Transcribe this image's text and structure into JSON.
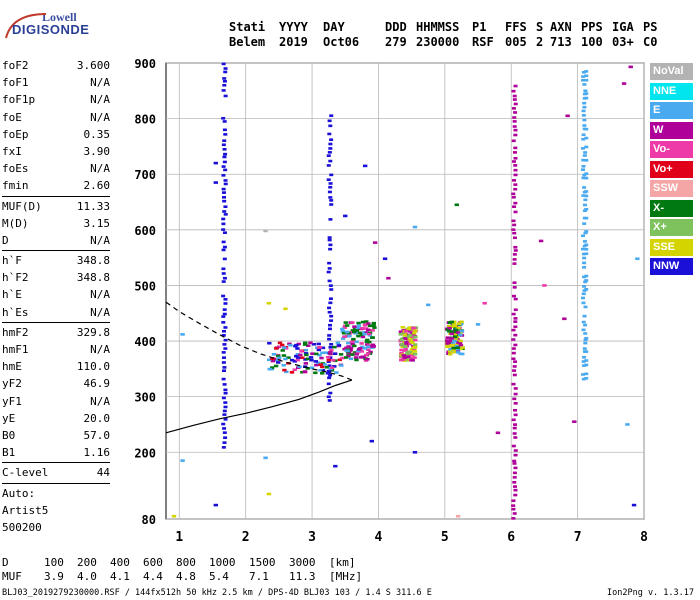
{
  "logo": {
    "line1": "Lowell",
    "line2": "DIGISONDE"
  },
  "header": {
    "labels": [
      "Stati",
      "YYYY",
      "DAY",
      "DDD",
      "HHMMSS",
      "P1",
      "FFS",
      "S",
      "AXN",
      "PPS",
      "IGA",
      "PS"
    ],
    "values": [
      "Belem",
      "2019",
      "Oct06",
      "279",
      "230000",
      "RSF",
      "005",
      "2",
      "713",
      "100",
      "03+",
      "C0"
    ]
  },
  "params": [
    {
      "name": "foF2",
      "value": "3.600"
    },
    {
      "name": "foF1",
      "value": "N/A"
    },
    {
      "name": "foF1p",
      "value": "N/A"
    },
    {
      "name": "foE",
      "value": "N/A"
    },
    {
      "name": "foEp",
      "value": "0.35"
    },
    {
      "name": "fxI",
      "value": "3.90"
    },
    {
      "name": "foEs",
      "value": "N/A"
    },
    {
      "name": "fmin",
      "value": "2.60",
      "sep_after": true
    },
    {
      "name": "MUF(D)",
      "value": "11.33"
    },
    {
      "name": "M(D)",
      "value": "3.15"
    },
    {
      "name": "D",
      "value": "N/A",
      "sep_after": true
    },
    {
      "name": "h`F",
      "value": "348.8"
    },
    {
      "name": "h`F2",
      "value": "348.8"
    },
    {
      "name": "h`E",
      "value": "N/A"
    },
    {
      "name": "h`Es",
      "value": "N/A",
      "sep_after": true
    },
    {
      "name": "hmF2",
      "value": "329.8"
    },
    {
      "name": "hmF1",
      "value": "N/A"
    },
    {
      "name": "hmE",
      "value": "110.0"
    },
    {
      "name": "yF2",
      "value": "46.9"
    },
    {
      "name": "yF1",
      "value": "N/A"
    },
    {
      "name": "yE",
      "value": "20.0"
    },
    {
      "name": "B0",
      "value": "57.0"
    },
    {
      "name": "B1",
      "value": "1.16",
      "sep_after": true
    },
    {
      "name": "C-level",
      "value": "44",
      "sep_after": true
    },
    {
      "name": "Auto:",
      "value": ""
    },
    {
      "name": "Artist5",
      "value": ""
    },
    {
      "name": "500200",
      "value": ""
    }
  ],
  "legend": [
    {
      "label": "NoVal",
      "color": "#b3b3b3"
    },
    {
      "label": "NNE",
      "color": "#00e5ee"
    },
    {
      "label": "E",
      "color": "#4aaaf0"
    },
    {
      "label": "W",
      "color": "#b0009a"
    },
    {
      "label": "Vo-",
      "color": "#ee3aa8"
    },
    {
      "label": "Vo+",
      "color": "#e0001a"
    },
    {
      "label": "SSW",
      "color": "#f4a6a6"
    },
    {
      "label": "X-",
      "color": "#007a10"
    },
    {
      "label": "X+",
      "color": "#7ec25e"
    },
    {
      "label": "SSE",
      "color": "#d4d400"
    },
    {
      "label": "NNW",
      "color": "#1a10d8"
    }
  ],
  "dmuf": {
    "d_label": "D",
    "d_values": [
      "100",
      "200",
      "400",
      "600",
      "800",
      "1000",
      "1500",
      "3000"
    ],
    "d_unit": "[km]",
    "muf_label": "MUF",
    "muf_values": [
      "3.9",
      "4.0",
      "4.1",
      "4.4",
      "4.8",
      "5.4",
      "7.1",
      "11.3"
    ],
    "muf_unit": "[MHz]"
  },
  "footer": {
    "left": "BLJ03_2019279230000.RSF / 144fx512h 50 kHz 2.5 km / DPS-4D BLJ03 103 / 1.4 S 311.6 E",
    "right": "Ion2Png v. 1.3.17"
  },
  "chart_data": {
    "type": "scatter",
    "xlim": [
      0.8,
      8.0
    ],
    "ylim": [
      80,
      900
    ],
    "x_ticks": [
      1,
      2,
      3,
      4,
      5,
      6,
      7,
      8
    ],
    "y_ticks": [
      80,
      200,
      300,
      400,
      500,
      600,
      700,
      800,
      900
    ],
    "grid": true,
    "legend_position": "right",
    "profile": [
      {
        "x": 0.8,
        "y": 235
      },
      {
        "x": 1.2,
        "y": 248
      },
      {
        "x": 1.6,
        "y": 260
      },
      {
        "x": 2.0,
        "y": 270
      },
      {
        "x": 2.4,
        "y": 282
      },
      {
        "x": 2.8,
        "y": 295
      },
      {
        "x": 3.1,
        "y": 308
      },
      {
        "x": 3.35,
        "y": 320
      },
      {
        "x": 3.6,
        "y": 330
      }
    ],
    "trace": [
      {
        "x": 3.6,
        "y": 330
      },
      {
        "x": 3.45,
        "y": 337
      },
      {
        "x": 3.2,
        "y": 345
      },
      {
        "x": 3.0,
        "y": 350
      },
      {
        "x": 2.8,
        "y": 356
      },
      {
        "x": 2.6,
        "y": 362
      },
      {
        "x": 2.4,
        "y": 370
      },
      {
        "x": 2.2,
        "y": 378
      },
      {
        "x": 1.9,
        "y": 393
      },
      {
        "x": 1.6,
        "y": 412
      },
      {
        "x": 1.3,
        "y": 432
      },
      {
        "x": 1.0,
        "y": 453
      },
      {
        "x": 0.8,
        "y": 470
      }
    ],
    "echo_columns": [
      {
        "x": 1.68,
        "y0": 200,
        "y1": 900,
        "mode": "NNW"
      },
      {
        "x": 6.05,
        "y0": 80,
        "y1": 860,
        "mode": "W"
      },
      {
        "x": 7.1,
        "y0": 330,
        "y1": 890,
        "mode": "E"
      },
      {
        "x": 3.27,
        "y0": 290,
        "y1": 805,
        "mode": "NNW"
      }
    ],
    "echo_clusters": [
      {
        "x": 2.9,
        "y": 370,
        "spread_x": 0.55,
        "spread_y": 28,
        "modes": [
          "W",
          "Vo-",
          "Vo+",
          "X-",
          "NNW",
          "E"
        ]
      },
      {
        "x": 3.7,
        "y": 400,
        "spread_x": 0.25,
        "spread_y": 35,
        "modes": [
          "W",
          "Vo-",
          "E",
          "X-"
        ]
      },
      {
        "x": 4.45,
        "y": 395,
        "spread_x": 0.12,
        "spread_y": 30,
        "modes": [
          "W",
          "Vo-",
          "SSE",
          "X+"
        ]
      },
      {
        "x": 5.15,
        "y": 405,
        "spread_x": 0.12,
        "spread_y": 30,
        "modes": [
          "W",
          "X-",
          "SSE",
          "E"
        ]
      }
    ],
    "scatter_points": [
      {
        "x": 1.55,
        "y": 720,
        "mode": "NNW"
      },
      {
        "x": 1.55,
        "y": 685,
        "mode": "NNW"
      },
      {
        "x": 2.3,
        "y": 598,
        "mode": "NoVal"
      },
      {
        "x": 3.5,
        "y": 625,
        "mode": "NNW"
      },
      {
        "x": 3.8,
        "y": 715,
        "mode": "NNW"
      },
      {
        "x": 4.1,
        "y": 548,
        "mode": "NNW"
      },
      {
        "x": 4.15,
        "y": 513,
        "mode": "W"
      },
      {
        "x": 3.95,
        "y": 577,
        "mode": "W"
      },
      {
        "x": 4.55,
        "y": 605,
        "mode": "E"
      },
      {
        "x": 5.18,
        "y": 645,
        "mode": "X-"
      },
      {
        "x": 6.45,
        "y": 580,
        "mode": "W"
      },
      {
        "x": 6.5,
        "y": 500,
        "mode": "Vo-"
      },
      {
        "x": 6.8,
        "y": 440,
        "mode": "W"
      },
      {
        "x": 6.85,
        "y": 805,
        "mode": "W"
      },
      {
        "x": 7.7,
        "y": 863,
        "mode": "W"
      },
      {
        "x": 7.8,
        "y": 893,
        "mode": "W"
      },
      {
        "x": 7.9,
        "y": 548,
        "mode": "E"
      },
      {
        "x": 7.85,
        "y": 105,
        "mode": "NNW"
      },
      {
        "x": 5.8,
        "y": 235,
        "mode": "W"
      },
      {
        "x": 4.55,
        "y": 200,
        "mode": "NNW"
      },
      {
        "x": 3.9,
        "y": 220,
        "mode": "NNW"
      },
      {
        "x": 3.35,
        "y": 175,
        "mode": "NNW"
      },
      {
        "x": 2.3,
        "y": 190,
        "mode": "E"
      },
      {
        "x": 2.35,
        "y": 125,
        "mode": "SSE"
      },
      {
        "x": 1.05,
        "y": 185,
        "mode": "E"
      },
      {
        "x": 1.55,
        "y": 105,
        "mode": "NNW"
      },
      {
        "x": 0.92,
        "y": 85,
        "mode": "SSE"
      },
      {
        "x": 5.2,
        "y": 85,
        "mode": "SSW"
      },
      {
        "x": 6.95,
        "y": 255,
        "mode": "W"
      },
      {
        "x": 7.75,
        "y": 250,
        "mode": "E"
      },
      {
        "x": 4.75,
        "y": 465,
        "mode": "E"
      },
      {
        "x": 5.5,
        "y": 430,
        "mode": "E"
      },
      {
        "x": 5.6,
        "y": 468,
        "mode": "Vo-"
      },
      {
        "x": 1.05,
        "y": 412,
        "mode": "E"
      },
      {
        "x": 2.6,
        "y": 458,
        "mode": "SSE"
      },
      {
        "x": 2.35,
        "y": 468,
        "mode": "SSE"
      }
    ]
  }
}
